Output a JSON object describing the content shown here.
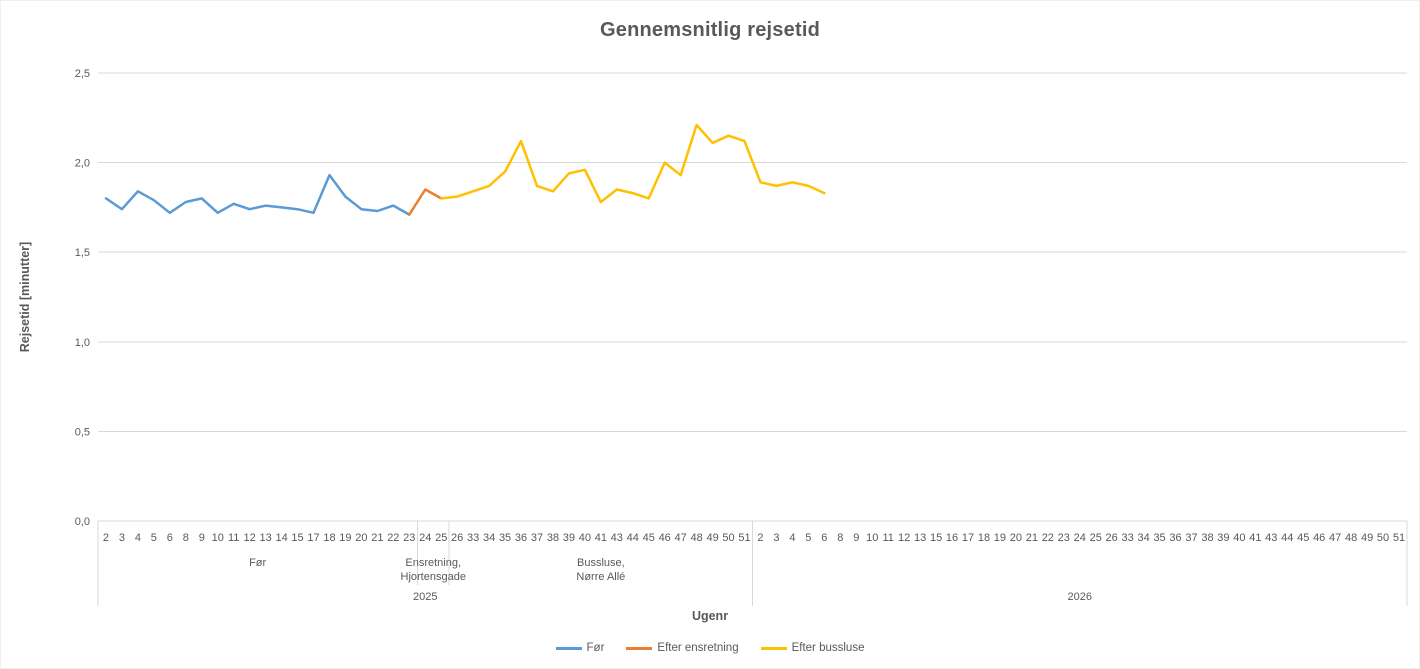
{
  "chart_data": {
    "type": "line",
    "title": "Gennemsnitlig rejsetid",
    "ylabel": "Rejsetid [minutter]",
    "xlabel": "Ugenr",
    "ylim": [
      0,
      2.5
    ],
    "ytick_step": 0.5,
    "ytick_labels": [
      "0,0",
      "0,5",
      "1,0",
      "1,5",
      "2,0",
      "2,5"
    ],
    "grid": true,
    "legend_position": "bottom",
    "gridline_color": "#D9D9D9",
    "text_color": "#595959",
    "x_axis": {
      "years": [
        {
          "label": "2025",
          "weeks": [
            "2",
            "3",
            "4",
            "5",
            "6",
            "8",
            "9",
            "10",
            "11",
            "12",
            "13",
            "14",
            "15",
            "17",
            "18",
            "19",
            "20",
            "21",
            "22",
            "23",
            "24",
            "25",
            "26",
            "33",
            "34",
            "35",
            "36",
            "37",
            "38",
            "39",
            "40",
            "41",
            "43",
            "44",
            "45",
            "46",
            "47",
            "48",
            "49",
            "50",
            "51"
          ],
          "groups": [
            {
              "lines": [
                "Før"
              ],
              "span": [
                0,
                19
              ]
            },
            {
              "lines": [
                "Ensretning,",
                "Hjortensgade"
              ],
              "span": [
                20,
                21
              ]
            },
            {
              "lines": [
                "Bussluse,",
                "Nørre Allé"
              ],
              "span": [
                22,
                40
              ]
            }
          ]
        },
        {
          "label": "2026",
          "weeks": [
            "2",
            "3",
            "4",
            "5",
            "6",
            "8",
            "9",
            "10",
            "11",
            "12",
            "13",
            "15",
            "16",
            "17",
            "18",
            "19",
            "20",
            "21",
            "22",
            "23",
            "24",
            "25",
            "26",
            "33",
            "34",
            "35",
            "36",
            "37",
            "38",
            "39",
            "40",
            "41",
            "43",
            "44",
            "45",
            "46",
            "47",
            "48",
            "49",
            "50",
            "51"
          ],
          "groups": []
        }
      ]
    },
    "series": [
      {
        "name": "Før",
        "color": "#5B9BD5",
        "start_index": 0,
        "values": [
          1.8,
          1.74,
          1.84,
          1.79,
          1.72,
          1.78,
          1.8,
          1.72,
          1.77,
          1.74,
          1.76,
          1.75,
          1.74,
          1.72,
          1.93,
          1.81,
          1.74,
          1.73,
          1.76,
          1.71
        ]
      },
      {
        "name": "Efter ensretning",
        "color": "#ED7D31",
        "start_index": 19,
        "values": [
          1.71,
          1.85,
          1.8
        ]
      },
      {
        "name": "Efter bussluse",
        "color": "#FFC000",
        "start_index": 21,
        "values": [
          1.8,
          1.81,
          1.84,
          1.87,
          1.95,
          2.12,
          1.87,
          1.84,
          1.94,
          1.96,
          1.78,
          1.85,
          1.83,
          1.8,
          2.0,
          1.93,
          2.21,
          2.11,
          2.15,
          2.12,
          1.89,
          1.87,
          1.89,
          1.87,
          1.83
        ]
      }
    ]
  }
}
